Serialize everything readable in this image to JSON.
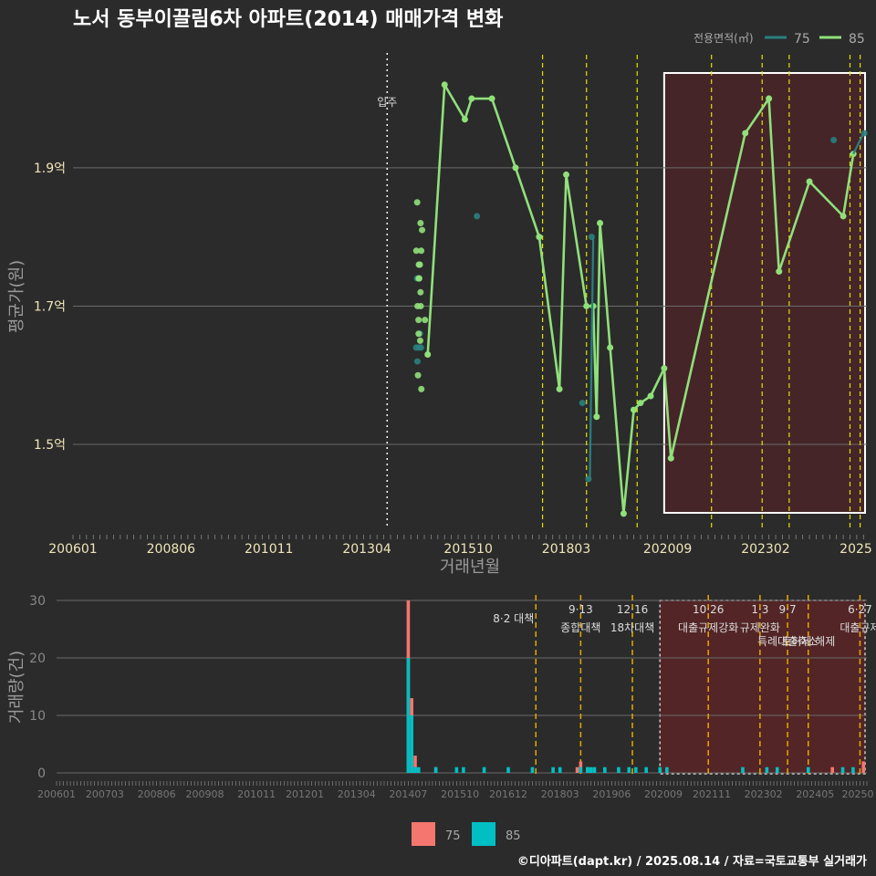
{
  "title": "노서 동부이끌림6차 아파트(2014) 매매가격 변화",
  "footer": "©디아파트(dapt.kr) / 2025.08.14 / 자료=국토교통부 실거래가",
  "legend_top": {
    "title": "전용면적(㎡)",
    "items": [
      {
        "label": "75",
        "color": "#2a7f80"
      },
      {
        "label": "85",
        "color": "#90e07a"
      }
    ]
  },
  "legend_bottom": {
    "items": [
      {
        "label": "75",
        "color": "#f4766e"
      },
      {
        "label": "85",
        "color": "#00bfc4"
      }
    ]
  },
  "move_in_label": "입주",
  "chart_data": [
    {
      "type": "line",
      "xlabel": "거래년월",
      "ylabel": "평균가(원)",
      "x_tick_labels": [
        "200601",
        "200806",
        "201011",
        "201304",
        "201510",
        "201803",
        "202009",
        "202302",
        "2025"
      ],
      "y_tick_labels": [
        "1.5억",
        "1.7억",
        "1.9억"
      ],
      "y_ticks": [
        1.5,
        1.7,
        1.9
      ],
      "ylim": [
        1.38,
        2.07
      ],
      "xlim": [
        "2006-01",
        "2025-08"
      ],
      "move_in": "2013-10",
      "policy_lines": [
        "2017-08",
        "2018-09",
        "2019-12",
        "2021-10",
        "2023-01",
        "2023-09",
        "2025-03",
        "2025-06"
      ],
      "highlight_range": [
        "2020-08",
        "2025-08"
      ],
      "series": [
        {
          "name": "75",
          "color": "#2a7f80",
          "points": [
            [
              "2014-07",
              1.64
            ],
            [
              "2014-07",
              1.62
            ],
            [
              "2014-07",
              1.64
            ],
            [
              "2014-07",
              1.74
            ],
            [
              "2014-08",
              1.66
            ],
            [
              "2014-08",
              1.64
            ],
            [
              "2016-01",
              1.83
            ],
            [
              "2018-08",
              1.56
            ],
            [
              "2018-10",
              1.45
            ],
            [
              "2018-11",
              1.8
            ],
            [
              "2024-10",
              1.94
            ],
            [
              "2025-07",
              1.95
            ]
          ]
        },
        {
          "name": "85",
          "color": "#90e07a",
          "points": [
            [
              "2014-07",
              1.85
            ],
            [
              "2014-07",
              1.78
            ],
            [
              "2014-07",
              1.76
            ],
            [
              "2014-07",
              1.74
            ],
            [
              "2014-07",
              1.7
            ],
            [
              "2014-07",
              1.68
            ],
            [
              "2014-07",
              1.66
            ],
            [
              "2014-07",
              1.6
            ],
            [
              "2014-08",
              1.82
            ],
            [
              "2014-08",
              1.81
            ],
            [
              "2014-08",
              1.78
            ],
            [
              "2014-08",
              1.76
            ],
            [
              "2014-08",
              1.74
            ],
            [
              "2014-08",
              1.72
            ],
            [
              "2014-08",
              1.7
            ],
            [
              "2014-08",
              1.65
            ],
            [
              "2014-08",
              1.58
            ],
            [
              "2014-09",
              1.68
            ]
          ]
        },
        {
          "name": "85-line",
          "color": "#90e07a",
          "points": [
            [
              "2014-10",
              1.63
            ],
            [
              "2015-03",
              2.02
            ],
            [
              "2015-09",
              1.97
            ],
            [
              "2015-11",
              2.0
            ],
            [
              "2016-05",
              2.0
            ],
            [
              "2016-12",
              1.9
            ],
            [
              "2017-07",
              1.8
            ],
            [
              "2018-01",
              1.58
            ],
            [
              "2018-03",
              1.89
            ],
            [
              "2018-09",
              1.7
            ],
            [
              "2018-11",
              1.7
            ],
            [
              "2018-12",
              1.54
            ],
            [
              "2019-01",
              1.82
            ],
            [
              "2019-04",
              1.64
            ],
            [
              "2019-08",
              1.4
            ],
            [
              "2019-11",
              1.55
            ],
            [
              "2020-01",
              1.56
            ],
            [
              "2020-04",
              1.57
            ],
            [
              "2020-08",
              1.61
            ],
            [
              "2020-10",
              1.48
            ],
            [
              "2022-08",
              1.95
            ],
            [
              "2023-03",
              2.0
            ],
            [
              "2023-06",
              1.75
            ],
            [
              "2024-03",
              1.88
            ],
            [
              "2025-01",
              1.83
            ],
            [
              "2025-04",
              1.92
            ]
          ]
        }
      ]
    },
    {
      "type": "bar",
      "ylabel": "거래량(건)",
      "y_tick_labels": [
        "0",
        "10",
        "20",
        "30"
      ],
      "ylim": [
        0,
        31
      ],
      "x_tick_labels": [
        "200601",
        "200703",
        "200806",
        "200908",
        "201011",
        "201201",
        "201304",
        "201407",
        "201510",
        "201612",
        "201803",
        "201906",
        "202009",
        "202111",
        "202302",
        "202405",
        "20250"
      ],
      "policy_labels": [
        {
          "date": "2017-08",
          "line1": "8·2 대책",
          "line2": ""
        },
        {
          "date": "2018-09",
          "line1": "9·13",
          "line2": "종합대책"
        },
        {
          "date": "2019-12",
          "line1": "12·16",
          "line2": "18차대책"
        },
        {
          "date": "2021-10",
          "line1": "10·26",
          "line2": "대출규제강화"
        },
        {
          "date": "2023-01",
          "line1": "1·3",
          "line2": "규제완화"
        },
        {
          "date": "2023-09",
          "line1": "9·7",
          "line2": "특례대출축소"
        },
        {
          "date": "2024-03",
          "line1": "",
          "line2": "토허제 해제"
        },
        {
          "date": "2025-06",
          "line1": "6·27",
          "line2": "대출규제"
        }
      ],
      "series": [
        {
          "name": "75",
          "color": "#f4766e",
          "values": [
            [
              "2014-07",
              30
            ],
            [
              "2014-08",
              13
            ],
            [
              "2014-09",
              3
            ],
            [
              "2015-03",
              1
            ],
            [
              "2018-08",
              1
            ],
            [
              "2018-09",
              2
            ],
            [
              "2018-11",
              1
            ],
            [
              "2024-10",
              1
            ],
            [
              "2025-07",
              2
            ]
          ]
        },
        {
          "name": "85",
          "color": "#00bfc4",
          "values": [
            [
              "2014-07",
              20
            ],
            [
              "2014-08",
              10
            ],
            [
              "2014-09",
              1
            ],
            [
              "2014-10",
              1
            ],
            [
              "2015-03",
              1
            ],
            [
              "2015-09",
              1
            ],
            [
              "2015-11",
              1
            ],
            [
              "2016-05",
              1
            ],
            [
              "2016-12",
              1
            ],
            [
              "2017-07",
              1
            ],
            [
              "2018-01",
              1
            ],
            [
              "2018-03",
              1
            ],
            [
              "2018-09",
              1
            ],
            [
              "2018-11",
              1
            ],
            [
              "2018-12",
              1
            ],
            [
              "2019-01",
              1
            ],
            [
              "2019-04",
              1
            ],
            [
              "2019-08",
              1
            ],
            [
              "2019-11",
              1
            ],
            [
              "2020-01",
              1
            ],
            [
              "2020-04",
              1
            ],
            [
              "2020-08",
              1
            ],
            [
              "2020-10",
              1
            ],
            [
              "2022-08",
              1
            ],
            [
              "2023-03",
              1
            ],
            [
              "2023-06",
              1
            ],
            [
              "2024-03",
              1
            ],
            [
              "2025-01",
              1
            ],
            [
              "2025-04",
              1
            ]
          ]
        }
      ]
    }
  ]
}
